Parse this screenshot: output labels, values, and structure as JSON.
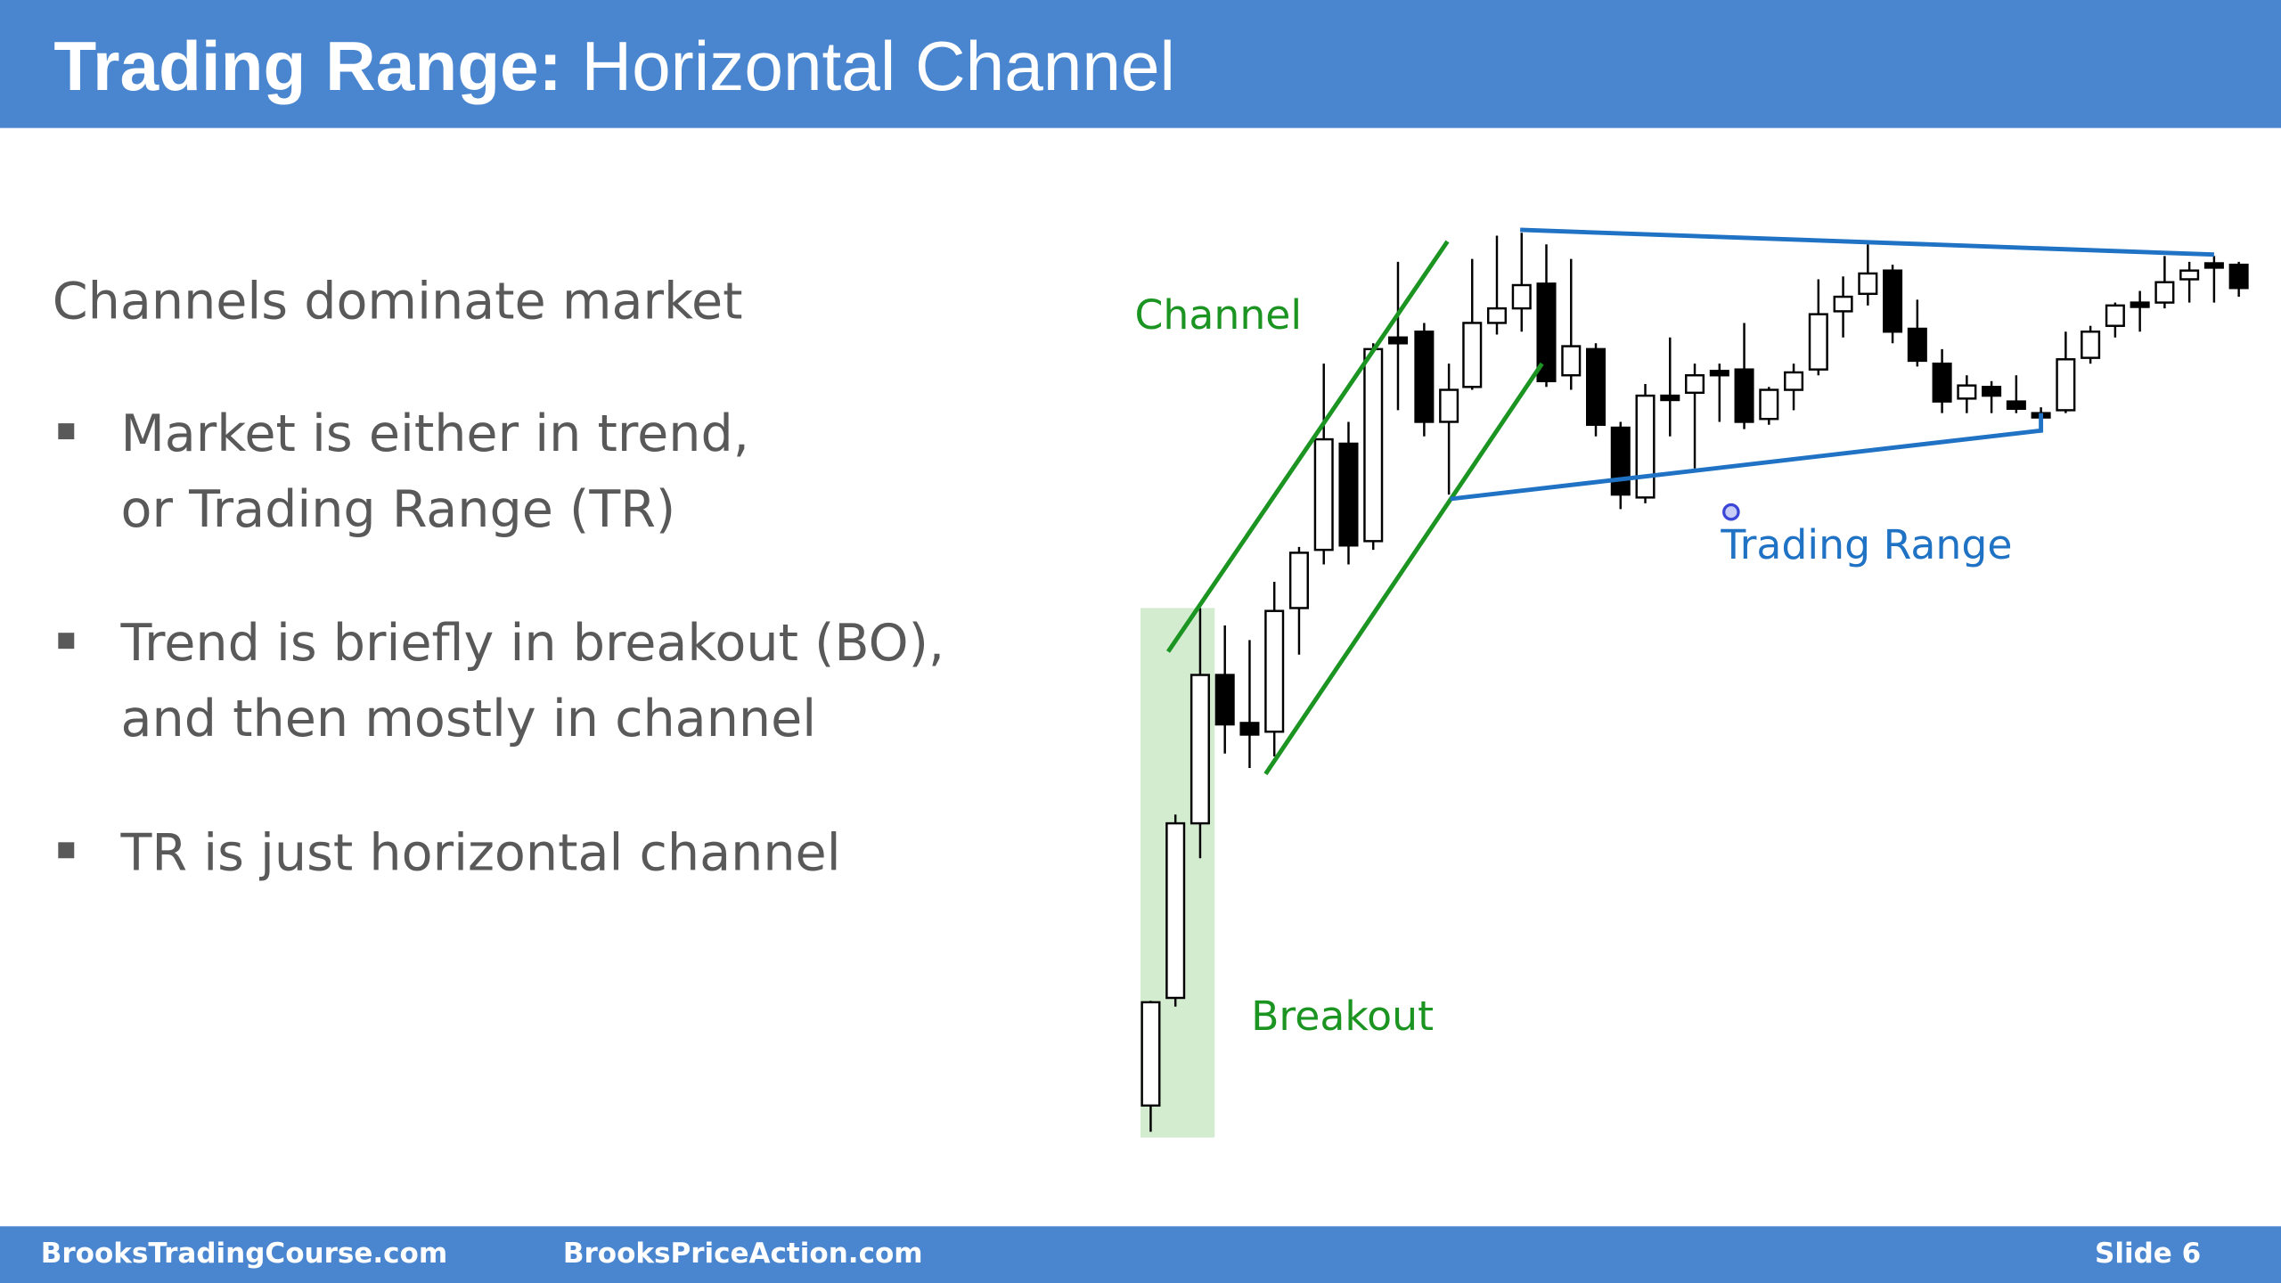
{
  "header": {
    "title_bold": "Trading Range:",
    "title_rest": "Horizontal Channel"
  },
  "content": {
    "heading": "Channels dominate market",
    "bullets": [
      {
        "lines": [
          "Market is either in trend,",
          "or Trading Range (TR)"
        ]
      },
      {
        "lines": [
          "Trend is briefly in breakout (BO),",
          "and then mostly in channel"
        ]
      },
      {
        "lines": [
          "TR is just horizontal channel"
        ]
      }
    ]
  },
  "illustration": {
    "channel_label": "Channel",
    "range_label": "Trading Range",
    "breakout_label": "Breakout"
  },
  "footer": {
    "left": "BrooksTradingCourse.com",
    "middle": "BrooksPriceAction.com",
    "slide": "Slide 6"
  }
}
